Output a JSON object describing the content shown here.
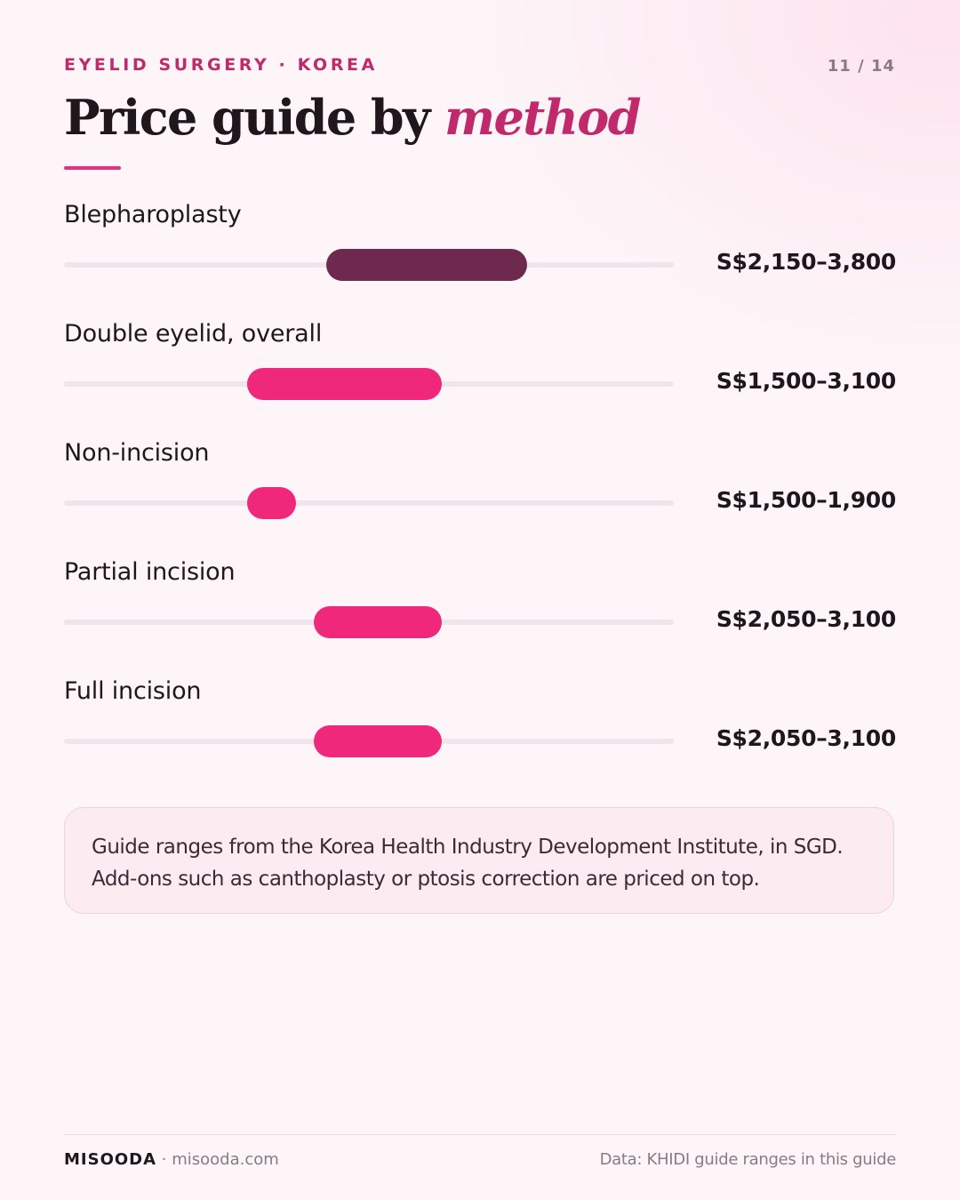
{
  "header": {
    "kicker": "EYELID SURGERY · KOREA",
    "page_counter": "11 / 14",
    "title_main": "Price guide by",
    "title_accent": "method"
  },
  "chart_data": {
    "type": "range-bar",
    "currency": "S$",
    "xlim": [
      0,
      5000
    ],
    "series": [
      {
        "label": "Blepharoplasty",
        "min": 2150,
        "max": 3800,
        "value_label": "S$2,150–3,800",
        "color": "#6e2a4e"
      },
      {
        "label": "Double eyelid, overall",
        "min": 1500,
        "max": 3100,
        "value_label": "S$1,500–3,100",
        "color": "#f0287c"
      },
      {
        "label": "Non-incision",
        "min": 1500,
        "max": 1900,
        "value_label": "S$1,500–1,900",
        "color": "#f0287c"
      },
      {
        "label": "Partial incision",
        "min": 2050,
        "max": 3100,
        "value_label": "S$2,050–3,100",
        "color": "#f0287c"
      },
      {
        "label": "Full incision",
        "min": 2050,
        "max": 3100,
        "value_label": "S$2,050–3,100",
        "color": "#f0287c"
      }
    ]
  },
  "note": {
    "line1": "Guide ranges from the Korea Health Industry Development Institute, in SGD.",
    "line2": "Add-ons such as canthoplasty or ptosis correction are priced on top."
  },
  "footer": {
    "brand": "MISOODA",
    "site": " · misooda.com",
    "source": "Data: KHIDI guide ranges in this guide"
  },
  "colors": {
    "accent": "#c0296b",
    "bar_highlight": "#6e2a4e",
    "bar_default": "#f0287c",
    "track": "#efe5ea"
  }
}
